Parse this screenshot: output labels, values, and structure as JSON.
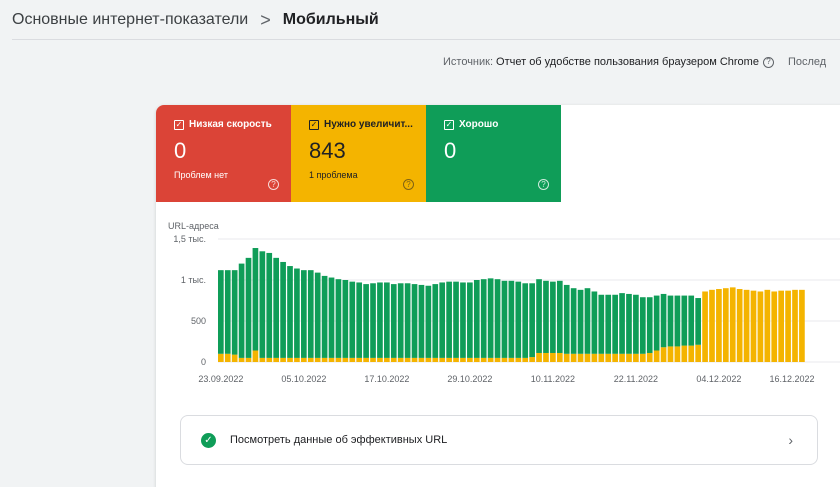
{
  "breadcrumb": {
    "parent": "Основные интернет-показатели",
    "separator": ">",
    "current": "Мобильный"
  },
  "source": {
    "label": "Источник:",
    "value": "Отчет об удобстве пользования браузером Chrome",
    "help_icon": "help-circle-icon",
    "trailing": "Послед"
  },
  "tiles": [
    {
      "label": "Низкая скорость",
      "value": "0",
      "sub": "Проблем нет",
      "color": "#db4437",
      "checked": true
    },
    {
      "label": "Нужно увеличит...",
      "value": "843",
      "sub": "1 проблема",
      "color": "#f4b400",
      "checked": true
    },
    {
      "label": "Хорошо",
      "value": "0",
      "sub": "",
      "color": "#0f9d58",
      "checked": true
    }
  ],
  "cta": {
    "label": "Посмотреть данные об эффективных URL",
    "icon": "check-circle-icon",
    "chevron": "chevron-right-icon"
  },
  "chart_data": {
    "type": "bar",
    "stacked": true,
    "ylabel": "URL-адреса",
    "y_ticks": [
      "0",
      "500",
      "1 тыс.",
      "1,5 тыс."
    ],
    "ylim": [
      0,
      1500
    ],
    "x_ticks": [
      "23.09.2022",
      "05.10.2022",
      "17.10.2022",
      "29.10.2022",
      "10.11.2022",
      "22.11.2022",
      "04.12.2022",
      "16.12.2022"
    ],
    "grid": true,
    "series": [
      {
        "name": "Хорошо",
        "color": "#0f9d58",
        "values": [
          1020,
          1020,
          1030,
          1150,
          1220,
          1250,
          1300,
          1280,
          1220,
          1170,
          1120,
          1090,
          1070,
          1070,
          1040,
          1000,
          980,
          960,
          950,
          930,
          920,
          900,
          910,
          920,
          920,
          900,
          910,
          910,
          900,
          890,
          880,
          900,
          920,
          930,
          930,
          920,
          920,
          950,
          960,
          970,
          960,
          940,
          940,
          930,
          910,
          900,
          900,
          880,
          870,
          880,
          840,
          800,
          780,
          800,
          760,
          720,
          720,
          720,
          740,
          730,
          720,
          690,
          680,
          670,
          650,
          620,
          620,
          610,
          610,
          570,
          0,
          0,
          0,
          0,
          0,
          0,
          0,
          0,
          0,
          0,
          0,
          0,
          0,
          0,
          0
        ]
      },
      {
        "name": "Нужно увеличить скорость",
        "color": "#f4b400",
        "values": [
          100,
          100,
          90,
          50,
          50,
          140,
          50,
          50,
          50,
          50,
          50,
          50,
          50,
          50,
          50,
          50,
          50,
          50,
          50,
          50,
          50,
          50,
          50,
          50,
          50,
          50,
          50,
          50,
          50,
          50,
          50,
          50,
          50,
          50,
          50,
          50,
          50,
          50,
          50,
          50,
          50,
          50,
          50,
          50,
          50,
          60,
          110,
          110,
          110,
          110,
          100,
          100,
          100,
          100,
          100,
          100,
          100,
          100,
          100,
          100,
          100,
          100,
          110,
          140,
          180,
          190,
          190,
          200,
          200,
          210,
          860,
          880,
          890,
          900,
          910,
          890,
          880,
          870,
          860,
          880,
          860,
          870,
          870,
          880,
          880
        ]
      },
      {
        "name": "Низкая скорость",
        "color": "#db4437",
        "values": []
      }
    ]
  }
}
